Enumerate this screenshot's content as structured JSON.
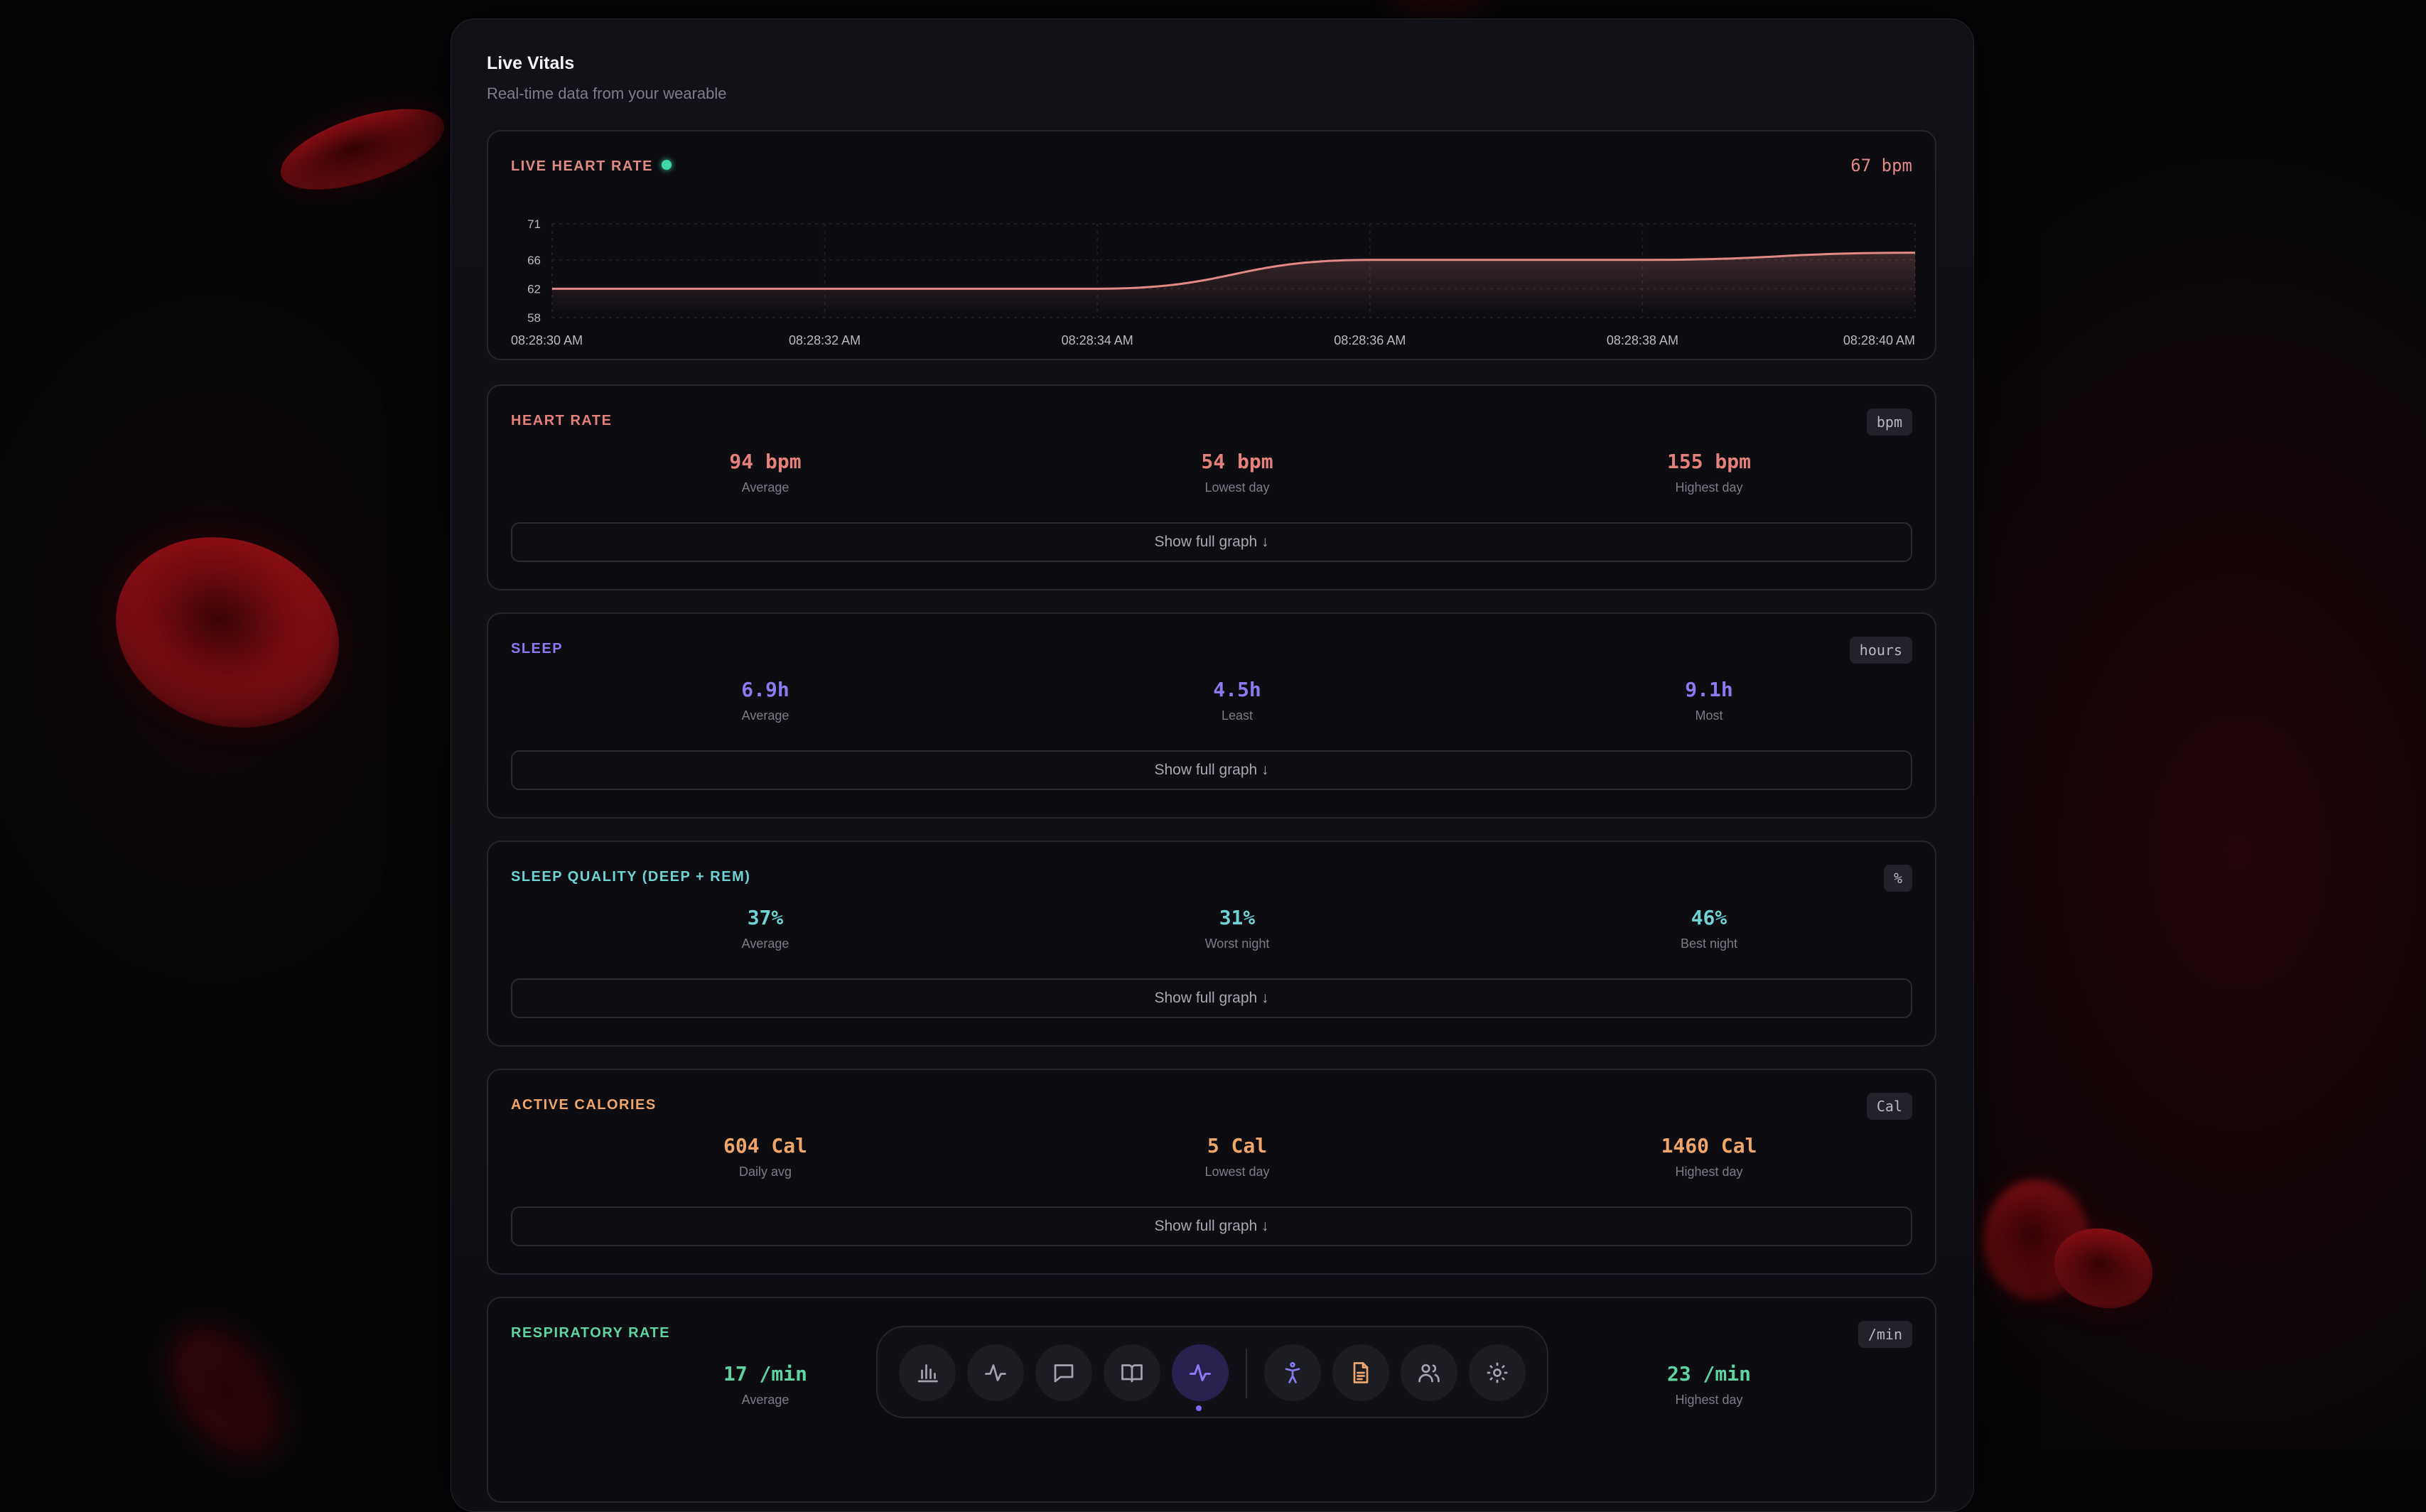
{
  "header": {
    "title": "Live Vitals",
    "subtitle": "Real-time data from your wearable"
  },
  "live_heart_rate": {
    "label": "LIVE HEART RATE",
    "current": "67 bpm",
    "colors": {
      "line": "#e08a86",
      "status_dot": "#3ed6a6"
    }
  },
  "chart_data": {
    "type": "line",
    "title": "",
    "xlabel": "",
    "ylabel": "",
    "y_ticks": [
      "71",
      "66",
      "62",
      "58"
    ],
    "ylim": [
      58,
      71
    ],
    "x_ticks": [
      "08:28:30 AM",
      "08:28:32 AM",
      "08:28:34 AM",
      "08:28:36 AM",
      "08:28:38 AM",
      "08:28:40 AM"
    ],
    "series": [
      {
        "values": [
          {
            "t": "08:28:30 AM",
            "bpm": 62
          },
          {
            "t": "08:28:32 AM",
            "bpm": 62
          },
          {
            "t": "08:28:34 AM",
            "bpm": 62
          },
          {
            "t": "08:28:36 AM",
            "bpm": 66
          },
          {
            "t": "08:28:38 AM",
            "bpm": 66
          },
          {
            "t": "08:28:40 AM",
            "bpm": 67
          }
        ]
      }
    ],
    "grid": true
  },
  "cards": [
    {
      "key": "heart-rate",
      "label": "HEART RATE",
      "unit": "bpm",
      "color": "#e5807b",
      "stats": [
        {
          "value": "94 bpm",
          "label": "Average"
        },
        {
          "value": "54 bpm",
          "label": "Lowest day"
        },
        {
          "value": "155 bpm",
          "label": "Highest day"
        }
      ],
      "button": "Show full graph ↓"
    },
    {
      "key": "sleep",
      "label": "SLEEP",
      "unit": "hours",
      "color": "#8b7bf2",
      "stats": [
        {
          "value": "6.9h",
          "label": "Average"
        },
        {
          "value": "4.5h",
          "label": "Least"
        },
        {
          "value": "9.1h",
          "label": "Most"
        }
      ],
      "button": "Show full graph ↓"
    },
    {
      "key": "sleep-quality",
      "label": "SLEEP QUALITY (DEEP + REM)",
      "unit": "%",
      "color": "#6fd3d3",
      "stats": [
        {
          "value": "37%",
          "label": "Average"
        },
        {
          "value": "31%",
          "label": "Worst night"
        },
        {
          "value": "46%",
          "label": "Best night"
        }
      ],
      "button": "Show full graph ↓"
    },
    {
      "key": "active-calories",
      "label": "ACTIVE CALORIES",
      "unit": "Cal",
      "color": "#f0a56a",
      "stats": [
        {
          "value": "604 Cal",
          "label": "Daily avg"
        },
        {
          "value": "5 Cal",
          "label": "Lowest day"
        },
        {
          "value": "1460 Cal",
          "label": "Highest day"
        }
      ],
      "button": "Show full graph ↓"
    },
    {
      "key": "respiratory-rate",
      "label": "RESPIRATORY RATE",
      "unit": "/min",
      "color": "#5fd4a0",
      "stats": [
        {
          "value": "17 /min",
          "label": "Average"
        },
        {
          "value": "",
          "label": ""
        },
        {
          "value": "23 /min",
          "label": "Highest day"
        }
      ],
      "button": ""
    }
  ],
  "nav": {
    "items": [
      {
        "icon": "bar-chart-icon"
      },
      {
        "icon": "activity-icon"
      },
      {
        "icon": "message-icon"
      },
      {
        "icon": "book-icon"
      },
      {
        "icon": "pulse-icon",
        "active": true
      },
      {
        "icon": "accessibility-icon"
      },
      {
        "icon": "document-icon"
      },
      {
        "icon": "users-icon"
      },
      {
        "icon": "gear-icon"
      }
    ],
    "accent": "#7c6cf0"
  }
}
